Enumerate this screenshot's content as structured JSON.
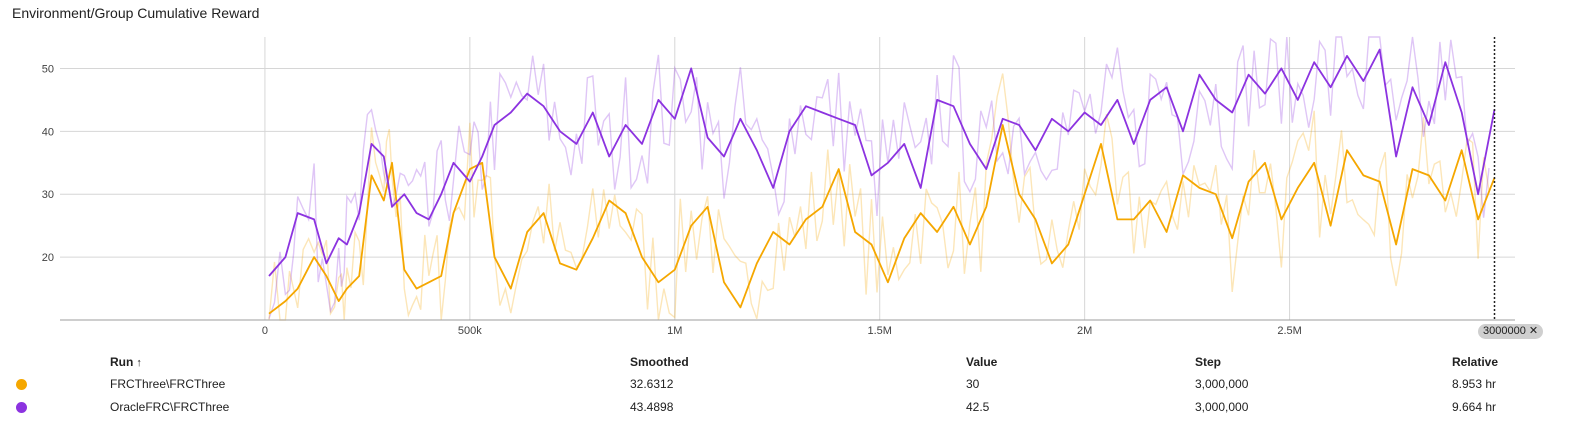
{
  "title": "Environment/Group Cumulative Reward",
  "chart_data": {
    "type": "line",
    "xlim": [
      -500000,
      3050000
    ],
    "ylim": [
      10,
      55
    ],
    "x_ticks": [
      {
        "v": 0,
        "label": "0"
      },
      {
        "v": 500000,
        "label": "500k"
      },
      {
        "v": 1000000,
        "label": "1M"
      },
      {
        "v": 1500000,
        "label": "1.5M"
      },
      {
        "v": 2000000,
        "label": "2M"
      },
      {
        "v": 2500000,
        "label": "2.5M"
      }
    ],
    "y_ticks": [
      {
        "v": 20,
        "label": "20"
      },
      {
        "v": 30,
        "label": "30"
      },
      {
        "v": 40,
        "label": "40"
      },
      {
        "v": 50,
        "label": "50"
      }
    ],
    "cursor_step": 3000000,
    "cursor_label": "3000000",
    "grid": true,
    "series": [
      {
        "name": "FRCThree\\FRCThree",
        "color": "#f5a700",
        "smoothed": [
          [
            10000,
            11
          ],
          [
            50000,
            13
          ],
          [
            80000,
            15
          ],
          [
            120000,
            20
          ],
          [
            150000,
            17
          ],
          [
            180000,
            13
          ],
          [
            200000,
            15
          ],
          [
            230000,
            17
          ],
          [
            260000,
            33
          ],
          [
            290000,
            29
          ],
          [
            310000,
            35
          ],
          [
            340000,
            18
          ],
          [
            370000,
            15
          ],
          [
            400000,
            16
          ],
          [
            430000,
            17
          ],
          [
            460000,
            27
          ],
          [
            500000,
            34
          ],
          [
            530000,
            35
          ],
          [
            560000,
            20
          ],
          [
            600000,
            15
          ],
          [
            640000,
            24
          ],
          [
            680000,
            27
          ],
          [
            720000,
            19
          ],
          [
            760000,
            18
          ],
          [
            800000,
            23
          ],
          [
            840000,
            29
          ],
          [
            880000,
            27
          ],
          [
            920000,
            20
          ],
          [
            960000,
            16
          ],
          [
            1000000,
            18
          ],
          [
            1040000,
            25
          ],
          [
            1080000,
            28
          ],
          [
            1120000,
            16
          ],
          [
            1160000,
            12
          ],
          [
            1200000,
            19
          ],
          [
            1240000,
            24
          ],
          [
            1280000,
            22
          ],
          [
            1320000,
            26
          ],
          [
            1360000,
            28
          ],
          [
            1400000,
            34
          ],
          [
            1440000,
            24
          ],
          [
            1480000,
            22
          ],
          [
            1520000,
            16
          ],
          [
            1560000,
            23
          ],
          [
            1600000,
            27
          ],
          [
            1640000,
            24
          ],
          [
            1680000,
            28
          ],
          [
            1720000,
            22
          ],
          [
            1760000,
            28
          ],
          [
            1800000,
            41
          ],
          [
            1840000,
            30
          ],
          [
            1880000,
            26
          ],
          [
            1920000,
            19
          ],
          [
            1960000,
            22
          ],
          [
            2000000,
            30
          ],
          [
            2040000,
            38
          ],
          [
            2080000,
            26
          ],
          [
            2120000,
            26
          ],
          [
            2160000,
            29
          ],
          [
            2200000,
            24
          ],
          [
            2240000,
            33
          ],
          [
            2280000,
            31
          ],
          [
            2320000,
            30
          ],
          [
            2360000,
            23
          ],
          [
            2400000,
            32
          ],
          [
            2440000,
            35
          ],
          [
            2480000,
            26
          ],
          [
            2520000,
            31
          ],
          [
            2560000,
            35
          ],
          [
            2600000,
            25
          ],
          [
            2640000,
            37
          ],
          [
            2680000,
            33
          ],
          [
            2720000,
            32
          ],
          [
            2760000,
            22
          ],
          [
            2800000,
            34
          ],
          [
            2840000,
            33
          ],
          [
            2880000,
            29
          ],
          [
            2920000,
            37
          ],
          [
            2960000,
            26
          ],
          [
            3000000,
            32.6312
          ]
        ]
      },
      {
        "name": "OracleFRC\\FRCThree",
        "color": "#8c33e0",
        "smoothed": [
          [
            10000,
            17
          ],
          [
            50000,
            20
          ],
          [
            80000,
            27
          ],
          [
            120000,
            26
          ],
          [
            150000,
            19
          ],
          [
            180000,
            23
          ],
          [
            200000,
            22
          ],
          [
            230000,
            27
          ],
          [
            260000,
            38
          ],
          [
            290000,
            36
          ],
          [
            310000,
            28
          ],
          [
            340000,
            30
          ],
          [
            370000,
            27
          ],
          [
            400000,
            26
          ],
          [
            430000,
            30
          ],
          [
            460000,
            35
          ],
          [
            500000,
            32
          ],
          [
            530000,
            36
          ],
          [
            560000,
            41
          ],
          [
            600000,
            43
          ],
          [
            640000,
            46
          ],
          [
            680000,
            44
          ],
          [
            720000,
            40
          ],
          [
            760000,
            38
          ],
          [
            800000,
            43
          ],
          [
            840000,
            36
          ],
          [
            880000,
            41
          ],
          [
            920000,
            38
          ],
          [
            960000,
            45
          ],
          [
            1000000,
            42
          ],
          [
            1040000,
            50
          ],
          [
            1080000,
            39
          ],
          [
            1120000,
            36
          ],
          [
            1160000,
            42
          ],
          [
            1200000,
            37
          ],
          [
            1240000,
            31
          ],
          [
            1280000,
            40
          ],
          [
            1320000,
            44
          ],
          [
            1360000,
            43
          ],
          [
            1400000,
            42
          ],
          [
            1440000,
            41
          ],
          [
            1480000,
            33
          ],
          [
            1520000,
            35
          ],
          [
            1560000,
            38
          ],
          [
            1600000,
            31
          ],
          [
            1640000,
            45
          ],
          [
            1680000,
            44
          ],
          [
            1720000,
            38
          ],
          [
            1760000,
            34
          ],
          [
            1800000,
            42
          ],
          [
            1840000,
            41
          ],
          [
            1880000,
            37
          ],
          [
            1920000,
            42
          ],
          [
            1960000,
            40
          ],
          [
            2000000,
            43
          ],
          [
            2040000,
            41
          ],
          [
            2080000,
            45
          ],
          [
            2120000,
            38
          ],
          [
            2160000,
            45
          ],
          [
            2200000,
            47
          ],
          [
            2240000,
            40
          ],
          [
            2280000,
            49
          ],
          [
            2320000,
            45
          ],
          [
            2360000,
            43
          ],
          [
            2400000,
            49
          ],
          [
            2440000,
            46
          ],
          [
            2480000,
            50
          ],
          [
            2520000,
            45
          ],
          [
            2560000,
            51
          ],
          [
            2600000,
            47
          ],
          [
            2640000,
            52
          ],
          [
            2680000,
            48
          ],
          [
            2720000,
            53
          ],
          [
            2760000,
            36
          ],
          [
            2800000,
            47
          ],
          [
            2840000,
            41
          ],
          [
            2880000,
            51
          ],
          [
            2920000,
            43
          ],
          [
            2960000,
            30
          ],
          [
            3000000,
            43.4898
          ]
        ]
      }
    ]
  },
  "table": {
    "headers": {
      "run": "Run",
      "smoothed": "Smoothed",
      "value": "Value",
      "step": "Step",
      "relative": "Relative"
    },
    "sort_indicator": "↑",
    "rows": [
      {
        "color": "#f5a700",
        "run": "FRCThree\\FRCThree",
        "smoothed": "32.6312",
        "value": "30",
        "step": "3,000,000",
        "relative": "8.953 hr"
      },
      {
        "color": "#8c33e0",
        "run": "OracleFRC\\FRCThree",
        "smoothed": "43.4898",
        "value": "42.5",
        "step": "3,000,000",
        "relative": "9.664 hr"
      }
    ]
  }
}
